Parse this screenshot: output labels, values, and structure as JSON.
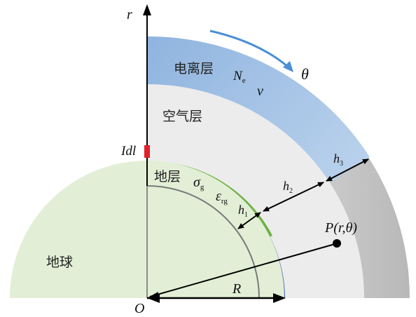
{
  "labels": {
    "axis_r": "r",
    "theta": "θ",
    "ionosphere": "电离层",
    "ne_main": "N",
    "ne_sub": "e",
    "nu": "v",
    "air": "空气层",
    "idl": "Idl",
    "ground_layer": "地层",
    "sigma_main": "σ",
    "sigma_sub": "g",
    "eps_main": "ε",
    "eps_sub": "rg",
    "h1_main": "h",
    "h1_sub": "1",
    "h2_main": "h",
    "h2_sub": "2",
    "h3_main": "h",
    "h3_sub": "3",
    "point_p": "P(r,θ)",
    "earth": "地球",
    "radius": "R",
    "origin": "O"
  },
  "colors": {
    "earth": "#e2efd6",
    "ground_layer": "#6fb043",
    "ground_dark": "#2f55a0",
    "ionosphere": "#a7c6e8",
    "air": "#ececec",
    "outer_gray": "#c9c9c9",
    "arrow_blue": "#4a8fd6",
    "dipole": "#e0202a"
  }
}
